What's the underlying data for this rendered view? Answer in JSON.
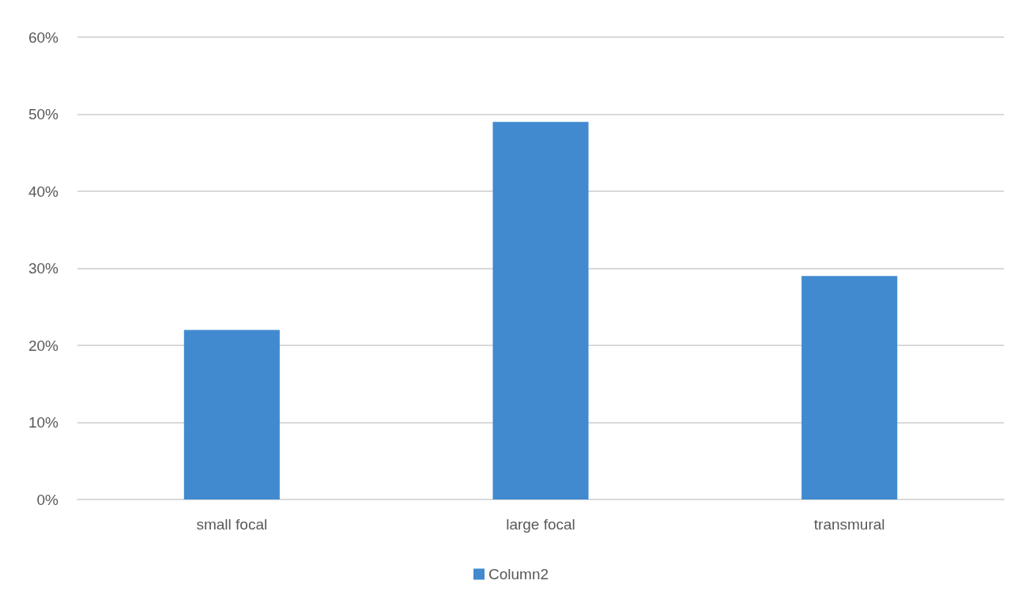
{
  "chart_data": {
    "type": "bar",
    "categories": [
      "small focal",
      "large focal",
      "transmural"
    ],
    "series": [
      {
        "name": "Column2",
        "color": "#418ad0",
        "values": [
          22,
          49,
          29
        ]
      }
    ],
    "ylim": [
      0,
      60
    ],
    "yticks": [
      {
        "value": 0,
        "label": "0%"
      },
      {
        "value": 10,
        "label": "10%"
      },
      {
        "value": 20,
        "label": "20%"
      },
      {
        "value": 30,
        "label": "30%"
      },
      {
        "value": 40,
        "label": "40%"
      },
      {
        "value": 50,
        "label": "50%"
      },
      {
        "value": 60,
        "label": "60%"
      }
    ],
    "grid": "y",
    "legend": "bottom"
  }
}
